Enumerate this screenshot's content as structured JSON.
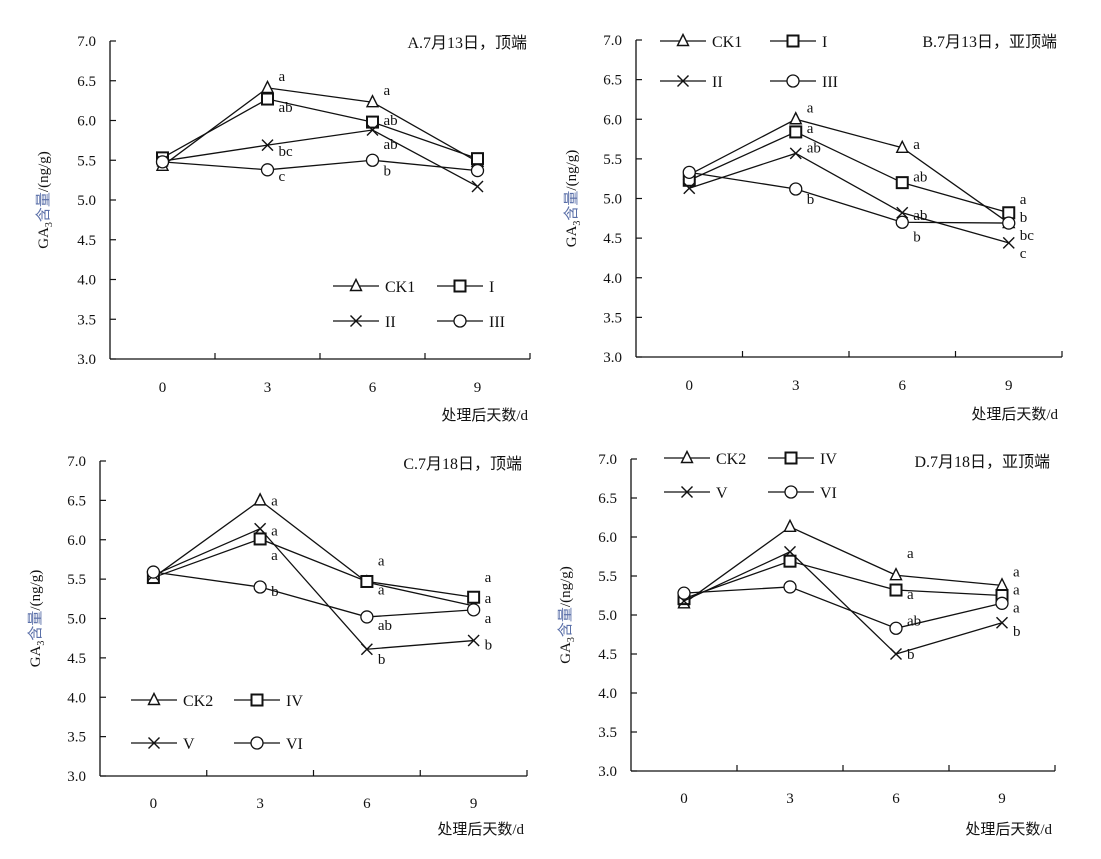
{
  "chart_data": [
    {
      "type": "line",
      "title": "A.7月13日，顶端",
      "xlabel": "处理后天数/d",
      "ylabel": {
        "prefix": "GA",
        "sub": "3",
        "colored": "含量",
        "suffix": "/(ng/g)"
      },
      "categories": [
        "0",
        "3",
        "6",
        "9"
      ],
      "ylim": [
        3.0,
        7.0
      ],
      "yticks": [
        "3.0",
        "3.5",
        "4.0",
        "4.5",
        "5.0",
        "5.5",
        "6.0",
        "6.5",
        "7.0"
      ],
      "grid": false,
      "legend_position": "bottom-right",
      "series": [
        {
          "name": "CK1",
          "marker": "triangle",
          "values": [
            5.43,
            6.41,
            6.23,
            5.48
          ],
          "letters": [
            "",
            "a",
            "a",
            ""
          ]
        },
        {
          "name": "I",
          "marker": "square",
          "values": [
            5.53,
            6.27,
            5.98,
            5.52
          ],
          "letters": [
            "",
            "ab",
            "ab",
            ""
          ]
        },
        {
          "name": "II",
          "marker": "x",
          "values": [
            5.49,
            5.69,
            5.88,
            5.17
          ],
          "letters": [
            "",
            "bc",
            "ab",
            ""
          ]
        },
        {
          "name": "III",
          "marker": "circle",
          "values": [
            5.48,
            5.38,
            5.5,
            5.37
          ],
          "letters": [
            "",
            "c",
            "b",
            ""
          ]
        }
      ]
    },
    {
      "type": "line",
      "title": "B.7月13日，亚顶端",
      "xlabel": "处理后天数/d",
      "ylabel": {
        "prefix": "GA",
        "sub": "3",
        "colored": "含量",
        "suffix": "/(ng/g)"
      },
      "categories": [
        "0",
        "3",
        "6",
        "9"
      ],
      "ylim": [
        3.0,
        7.0
      ],
      "yticks": [
        "3.0",
        "3.5",
        "4.0",
        "4.5",
        "5.0",
        "5.5",
        "6.0",
        "6.5",
        "7.0"
      ],
      "grid": false,
      "legend_position": "top-left",
      "series": [
        {
          "name": "CK1",
          "marker": "triangle",
          "values": [
            5.3,
            6.0,
            5.64,
            4.69
          ],
          "letters": [
            "",
            "a",
            "a",
            "b"
          ]
        },
        {
          "name": "I",
          "marker": "square",
          "values": [
            5.23,
            5.84,
            5.2,
            4.82
          ],
          "letters": [
            "",
            "a",
            "ab",
            "a"
          ]
        },
        {
          "name": "II",
          "marker": "x",
          "values": [
            5.13,
            5.57,
            4.82,
            4.44
          ],
          "letters": [
            "",
            "ab",
            "ab",
            "c"
          ]
        },
        {
          "name": "III",
          "marker": "circle",
          "values": [
            5.33,
            5.12,
            4.7,
            4.69
          ],
          "letters": [
            "",
            "b",
            "b",
            "bc"
          ]
        }
      ]
    },
    {
      "type": "line",
      "title": "C.7月18日，顶端",
      "xlabel": "处理后天数/d",
      "ylabel": {
        "prefix": "GA",
        "sub": "3",
        "colored": "含量",
        "suffix": "/(ng/g)"
      },
      "categories": [
        "0",
        "3",
        "6",
        "9"
      ],
      "ylim": [
        3.0,
        7.0
      ],
      "yticks": [
        "3.0",
        "3.5",
        "4.0",
        "4.5",
        "5.0",
        "5.5",
        "6.0",
        "6.5",
        "7.0"
      ],
      "grid": false,
      "legend_position": "bottom-left",
      "series": [
        {
          "name": "CK2",
          "marker": "triangle",
          "values": [
            5.52,
            6.5,
            5.46,
            5.16
          ],
          "letters": [
            "",
            "a",
            "a",
            "a"
          ]
        },
        {
          "name": "IV",
          "marker": "square",
          "values": [
            5.52,
            6.01,
            5.47,
            5.27
          ],
          "letters": [
            "",
            "a",
            "a",
            "a"
          ]
        },
        {
          "name": "V",
          "marker": "x",
          "values": [
            5.55,
            6.14,
            4.61,
            4.72
          ],
          "letters": [
            "",
            "a",
            "b",
            "b"
          ]
        },
        {
          "name": "VI",
          "marker": "circle",
          "values": [
            5.59,
            5.4,
            5.02,
            5.11
          ],
          "letters": [
            "",
            "b",
            "ab",
            "a"
          ]
        }
      ]
    },
    {
      "type": "line",
      "title": "D.7月18日，亚顶端",
      "xlabel": "处理后天数/d",
      "ylabel": {
        "prefix": "GA",
        "sub": "3",
        "colored": "含量",
        "suffix": "/(ng/g)"
      },
      "categories": [
        "0",
        "3",
        "6",
        "9"
      ],
      "ylim": [
        3.0,
        7.0
      ],
      "yticks": [
        "3.0",
        "3.5",
        "4.0",
        "4.5",
        "5.0",
        "5.5",
        "6.0",
        "6.5",
        "7.0"
      ],
      "grid": false,
      "legend_position": "top-left",
      "series": [
        {
          "name": "CK2",
          "marker": "triangle",
          "values": [
            5.15,
            6.13,
            5.51,
            5.38
          ],
          "letters": [
            "",
            "",
            "a",
            "a"
          ]
        },
        {
          "name": "IV",
          "marker": "square",
          "values": [
            5.21,
            5.69,
            5.32,
            5.25
          ],
          "letters": [
            "",
            "",
            "a",
            "a"
          ]
        },
        {
          "name": "V",
          "marker": "x",
          "values": [
            5.18,
            5.81,
            4.5,
            4.9
          ],
          "letters": [
            "",
            "",
            "b",
            "b"
          ]
        },
        {
          "name": "VI",
          "marker": "circle",
          "values": [
            5.28,
            5.36,
            4.83,
            5.15
          ],
          "letters": [
            "",
            "",
            "ab",
            "a"
          ]
        }
      ]
    }
  ],
  "colors": {
    "line": "#111111",
    "ylabel_accent": "#5a6fa8"
  }
}
